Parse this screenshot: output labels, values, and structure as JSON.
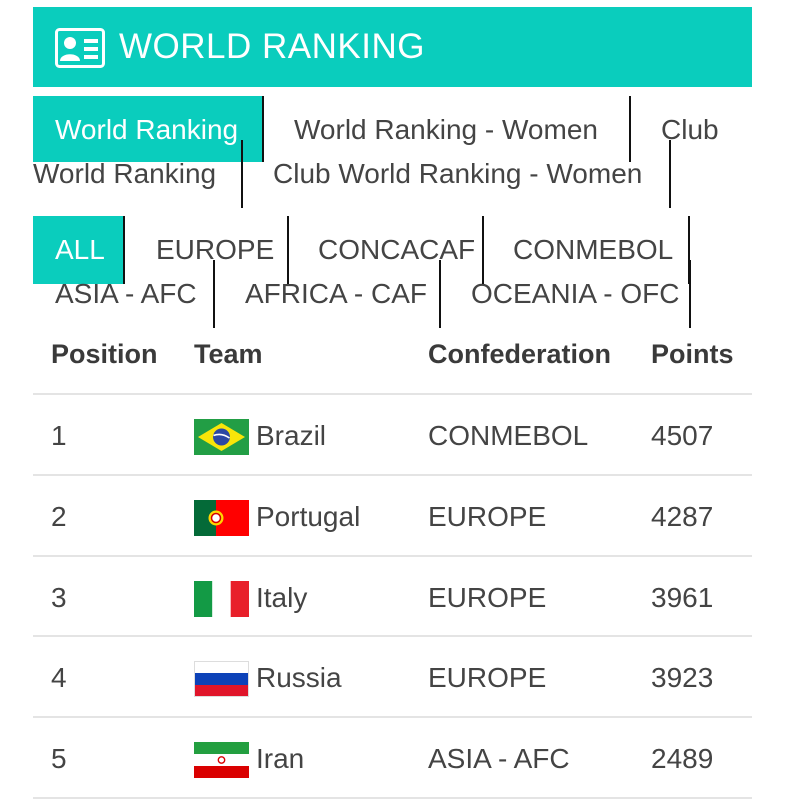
{
  "header": {
    "title": "WORLD RANKING",
    "icon": "id-card-icon"
  },
  "ranking_tabs": [
    {
      "label": "World Ranking",
      "active": true
    },
    {
      "label": "World Ranking - Women",
      "active": false
    },
    {
      "label": "Club",
      "active": false
    },
    {
      "label": "World Ranking",
      "active": false
    },
    {
      "label": "Club World Ranking - Women",
      "active": false
    }
  ],
  "confederation_tabs": [
    {
      "label": "ALL",
      "active": true
    },
    {
      "label": "EUROPE",
      "active": false
    },
    {
      "label": "CONCACAF",
      "active": false
    },
    {
      "label": "CONMEBOL",
      "active": false
    },
    {
      "label": "ASIA - AFC",
      "active": false
    },
    {
      "label": "AFRICA - CAF",
      "active": false
    },
    {
      "label": "OCEANIA - OFC",
      "active": false
    }
  ],
  "table": {
    "headers": [
      "Position",
      "Team",
      "Confederation",
      "Points"
    ],
    "rows": [
      {
        "position": "1",
        "team": "Brazil",
        "flag": "brazil-flag-icon",
        "confederation": "CONMEBOL",
        "points": "4507"
      },
      {
        "position": "2",
        "team": "Portugal",
        "flag": "portugal-flag-icon",
        "confederation": "EUROPE",
        "points": "4287"
      },
      {
        "position": "3",
        "team": "Italy",
        "flag": "italy-flag-icon",
        "confederation": "EUROPE",
        "points": "3961"
      },
      {
        "position": "4",
        "team": "Russia",
        "flag": "russia-flag-icon",
        "confederation": "EUROPE",
        "points": "3923"
      },
      {
        "position": "5",
        "team": "Iran",
        "flag": "iran-flag-icon",
        "confederation": "ASIA - AFC",
        "points": "2489"
      }
    ]
  },
  "colors": {
    "accent": "#0acdbd",
    "text": "#444444",
    "divider": "#e4e4e4"
  }
}
